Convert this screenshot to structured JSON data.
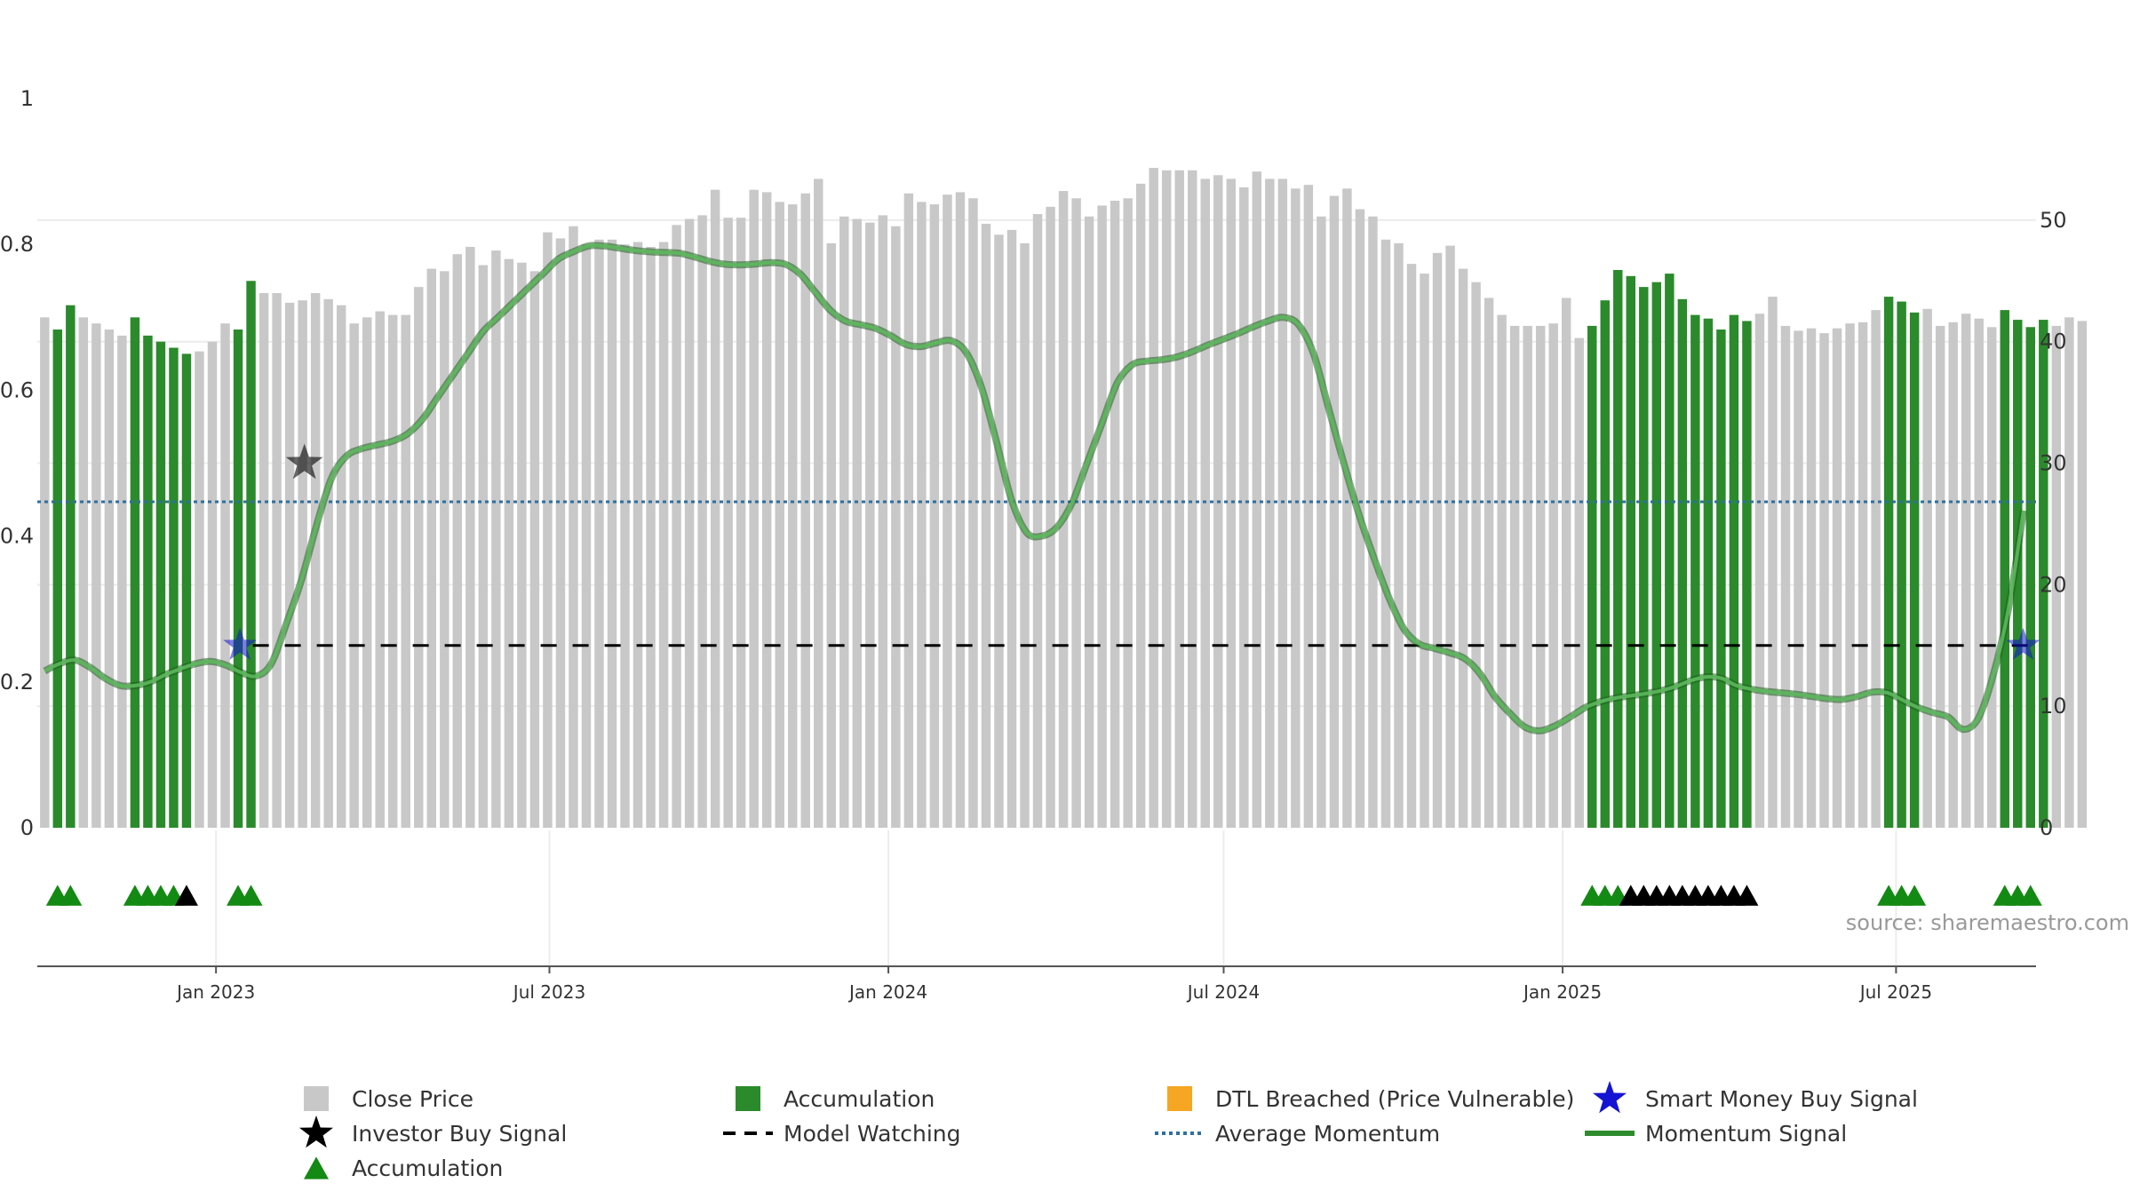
{
  "chart_data": {
    "type": "bar+line",
    "title": "",
    "source_text": "source: sharemaestro.com",
    "left_axis": {
      "ylim": [
        0,
        1.05
      ],
      "ticks": [
        0,
        0.2,
        0.4,
        0.6,
        0.8,
        1
      ],
      "tick_labels": [
        "0",
        "0.2",
        "0.4",
        "0.6",
        "0.8",
        "1"
      ],
      "label": ""
    },
    "right_axis": {
      "ylim": [
        0,
        63
      ],
      "ticks": [
        0,
        10,
        20,
        30,
        40,
        50
      ],
      "tick_labels": [
        "0",
        "10",
        "20",
        "30",
        "40",
        "50"
      ],
      "label": ""
    },
    "x_range": [
      "2022-09-26",
      "2025-09-15"
    ],
    "x_ticks": [
      {
        "date": "2023-01-01",
        "label": "Jan 2023"
      },
      {
        "date": "2023-07-01",
        "label": "Jul 2023"
      },
      {
        "date": "2024-01-01",
        "label": "Jan 2024"
      },
      {
        "date": "2024-07-01",
        "label": "Jul 2024"
      },
      {
        "date": "2025-01-01",
        "label": "Jan 2025"
      },
      {
        "date": "2025-07-01",
        "label": "Jul 2025"
      }
    ],
    "close_price_start_date": "2022-09-30",
    "close_price_step_days": 7,
    "close_price": [
      42,
      41,
      43,
      42,
      41.5,
      41,
      40.5,
      42,
      40.5,
      40,
      39.5,
      39,
      39.2,
      40,
      41.5,
      41,
      45,
      44,
      44,
      43.2,
      43.4,
      44,
      43.5,
      43,
      41.5,
      42,
      42.5,
      42.2,
      42.2,
      44.5,
      46,
      45.8,
      47.2,
      47.8,
      46.3,
      47.5,
      46.8,
      46.5,
      45.8,
      49,
      48.5,
      49.5,
      48,
      48.4,
      48.4,
      48,
      48.2,
      47.8,
      48.2,
      49.6,
      50.1,
      50.4,
      52.5,
      50.2,
      50.2,
      52.5,
      52.3,
      51.5,
      51.3,
      52.2,
      53.4,
      48.1,
      50.3,
      50.1,
      49.8,
      50.4,
      49.5,
      52.2,
      51.5,
      51.3,
      52.1,
      52.3,
      51.8,
      49.7,
      48.8,
      49.2,
      48.1,
      50.5,
      51.1,
      52.4,
      51.8,
      50.3,
      51.2,
      51.6,
      51.8,
      53,
      54.3,
      54.1,
      54.1,
      54.1,
      53.4,
      53.7,
      53.4,
      52.7,
      54,
      53.4,
      53.4,
      52.6,
      52.9,
      50.3,
      52,
      52.6,
      50.9,
      50.3,
      48.4,
      48.1,
      46.4,
      45.6,
      47.3,
      47.9,
      46,
      44.9,
      43.6,
      42.2,
      41.3,
      41.3,
      41.3,
      41.5,
      43.6,
      40.3,
      41.3,
      43.4,
      45.9,
      45.4,
      44.5,
      44.9,
      45.6,
      43.5,
      42.2,
      41.9,
      41,
      42.2,
      41.7,
      42.3,
      43.7,
      41.3,
      40.9,
      41.1,
      40.7,
      41.1,
      41.5,
      41.6,
      42.6,
      43.7,
      43.3,
      42.4,
      42.7,
      41.3,
      41.6,
      42.3,
      41.9,
      41.2,
      42.6,
      41.8,
      41.2,
      41.8,
      41.3,
      42,
      41.7
    ],
    "accumulation_ranges": [
      [
        1,
        2
      ],
      [
        7,
        11
      ],
      [
        15,
        16
      ],
      [
        120,
        132
      ],
      [
        143,
        145
      ],
      [
        152,
        155
      ]
    ],
    "momentum_signal": [
      0.215,
      0.225,
      0.23,
      0.22,
      0.205,
      0.195,
      0.195,
      0.2,
      0.21,
      0.218,
      0.225,
      0.228,
      0.223,
      0.213,
      0.208,
      0.225,
      0.28,
      0.34,
      0.415,
      0.48,
      0.51,
      0.52,
      0.525,
      0.53,
      0.54,
      0.56,
      0.59,
      0.62,
      0.65,
      0.68,
      0.7,
      0.72,
      0.74,
      0.76,
      0.78,
      0.79,
      0.798,
      0.798,
      0.795,
      0.792,
      0.79,
      0.789,
      0.788,
      0.783,
      0.777,
      0.773,
      0.772,
      0.773,
      0.775,
      0.773,
      0.76,
      0.735,
      0.71,
      0.695,
      0.69,
      0.685,
      0.675,
      0.663,
      0.66,
      0.665,
      0.668,
      0.652,
      0.605,
      0.53,
      0.45,
      0.405,
      0.4,
      0.412,
      0.445,
      0.5,
      0.555,
      0.61,
      0.635,
      0.64,
      0.642,
      0.646,
      0.653,
      0.662,
      0.67,
      0.678,
      0.687,
      0.695,
      0.7,
      0.69,
      0.65,
      0.575,
      0.5,
      0.43,
      0.37,
      0.315,
      0.272,
      0.252,
      0.246,
      0.24,
      0.232,
      0.212,
      0.18,
      0.157,
      0.138,
      0.133,
      0.14,
      0.152,
      0.165,
      0.173,
      0.178,
      0.181,
      0.184,
      0.188,
      0.194,
      0.202,
      0.207,
      0.205,
      0.195,
      0.19,
      0.187,
      0.185,
      0.183,
      0.18,
      0.177,
      0.176,
      0.18,
      0.186,
      0.185,
      0.175,
      0.165,
      0.158,
      0.152,
      0.135,
      0.15,
      0.21,
      0.3,
      0.435
    ],
    "momentum_start_date": "2022-09-30",
    "momentum_step_days": 8.2,
    "average_momentum": 0.447,
    "model_watching": {
      "y": 0.25,
      "start_date": "2023-01-21",
      "end_date": "2025-09-12"
    },
    "investor_buy_signals": [
      {
        "date": "2023-02-18",
        "y": 0.5
      }
    ],
    "smart_money_buy_signals": [
      {
        "date": "2023-01-14",
        "y": 0.25
      },
      {
        "date": "2025-09-08",
        "y": 0.25
      }
    ],
    "accumulation_markers": {
      "green_indices": [
        1,
        2,
        7,
        8,
        9,
        10,
        15,
        16,
        120,
        121,
        122,
        143,
        144,
        145,
        152,
        153,
        154
      ],
      "black_indices": [
        11,
        123,
        124,
        125,
        126,
        127,
        128,
        129,
        130,
        131,
        132
      ]
    },
    "legend": [
      {
        "label": "Close Price",
        "marker": "gray-square"
      },
      {
        "label": "Accumulation",
        "marker": "green-square"
      },
      {
        "label": "DTL Breached (Price Vulnerable)",
        "marker": "orange-square"
      },
      {
        "label": "Smart Money Buy Signal",
        "marker": "blue-star"
      },
      {
        "label": "Investor Buy Signal",
        "marker": "black-star"
      },
      {
        "label": "Model Watching",
        "marker": "black-dash"
      },
      {
        "label": "Average Momentum",
        "marker": "blue-dotted"
      },
      {
        "label": "Momentum Signal",
        "marker": "green-line"
      },
      {
        "label": "Accumulation",
        "marker": "green-triangle"
      }
    ],
    "colors": {
      "close_price": "#c8c8c8",
      "accumulation": "#2b8a2b",
      "dtl": "#f5a623",
      "smart_money": "#1414d2",
      "investor": "#000000",
      "model_watching": "#000000",
      "average_momentum": "#2e6fa0",
      "momentum_signal": "#2e8b2e",
      "triangle_green": "#138a13",
      "triangle_black": "#000000",
      "source_text": "#999999"
    }
  }
}
